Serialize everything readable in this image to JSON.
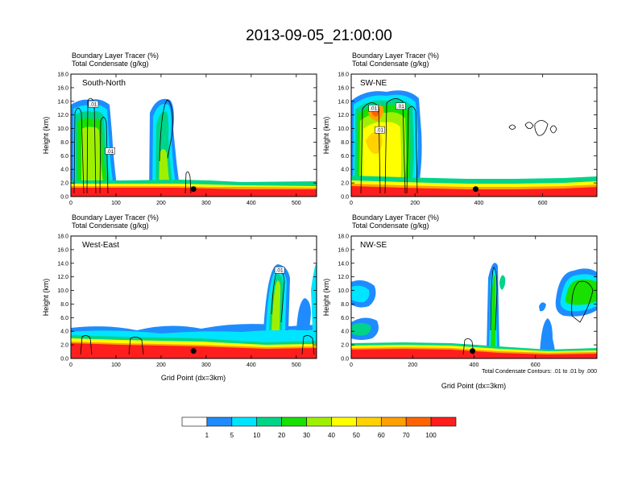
{
  "figure": {
    "title": "2013-09-05_21:00:00",
    "xlabel": "Grid Point (dx=3km)",
    "note": "Total Condensate Contours: .01 to .01 by .000"
  },
  "colorbar": {
    "tick_labels": [
      "1",
      "5",
      "10",
      "20",
      "30",
      "40",
      "50",
      "60",
      "70",
      "100"
    ],
    "colors": [
      "#ffffff",
      "#1e8cff",
      "#00e5ff",
      "#00d488",
      "#18e000",
      "#9ff000",
      "#ffff00",
      "#ffd200",
      "#ffa000",
      "#ff6400",
      "#ff1e1e"
    ]
  },
  "chart_data": [
    {
      "type": "heatmap",
      "panel_label": "South-North",
      "title_lines": [
        "Boundary Layer Tracer   (%)",
        "Total Condensate   (g/kg)"
      ],
      "ylabel": "Height (km)",
      "ylim": [
        0,
        18
      ],
      "yticks": [
        "0.0",
        "2.0",
        "4.0",
        "6.0",
        "8.0",
        "10.0",
        "12.0",
        "14.0",
        "16.0",
        "18.0"
      ],
      "xlim": [
        0,
        545
      ],
      "xticks": [
        0,
        100,
        200,
        300,
        400,
        500
      ],
      "marker": {
        "x": 272,
        "y": 1.1
      },
      "contour_labels": [
        {
          "text": ".01",
          "x": 50,
          "y": 13.6
        },
        {
          "text": ".01",
          "x": 87,
          "y": 6.7
        }
      ],
      "boundary_layer_top": [
        [
          0,
          2.5
        ],
        [
          100,
          2.4
        ],
        [
          200,
          2.1
        ],
        [
          300,
          1.8
        ],
        [
          400,
          1.6
        ],
        [
          545,
          1.6
        ]
      ],
      "plumes": [
        {
          "x": [
            0,
            90
          ],
          "top": 14.8
        },
        {
          "x": [
            180,
            225
          ],
          "top": 14.5
        }
      ]
    },
    {
      "type": "heatmap",
      "panel_label": "SW-NE",
      "title_lines": [
        "Boundary Layer Tracer   (%)",
        "Total Condensate   (g/kg)"
      ],
      "ylabel": "Height (km)",
      "ylim": [
        0,
        18
      ],
      "yticks": [
        "0.0",
        "2.0",
        "4.0",
        "6.0",
        "8.0",
        "10.0",
        "12.0",
        "14.0",
        "16.0",
        "18.0"
      ],
      "xlim": [
        0,
        770
      ],
      "xticks": [
        0,
        200,
        400,
        600
      ],
      "marker": {
        "x": 390,
        "y": 1.1
      },
      "contour_labels": [
        {
          "text": ".01",
          "x": 70,
          "y": 13.0
        },
        {
          "text": ".01",
          "x": 155,
          "y": 13.3
        },
        {
          "text": ".01",
          "x": 90,
          "y": 9.8
        }
      ],
      "boundary_layer_top": [
        [
          0,
          3.0
        ],
        [
          200,
          2.6
        ],
        [
          400,
          2.5
        ],
        [
          600,
          2.5
        ],
        [
          770,
          2.9
        ]
      ],
      "plumes": [
        {
          "x": [
            0,
            210
          ],
          "top": 15.5
        }
      ]
    },
    {
      "type": "heatmap",
      "panel_label": "West-East",
      "title_lines": [
        "Boundary Layer Tracer   (%)",
        "Total Condensate   (g/kg)"
      ],
      "ylabel": "Height (km)",
      "ylim": [
        0,
        18
      ],
      "yticks": [
        "0.0",
        "2.0",
        "4.0",
        "6.0",
        "8.0",
        "10.0",
        "12.0",
        "14.0",
        "16.0",
        "18.0"
      ],
      "xlim": [
        0,
        545
      ],
      "xticks": [
        0,
        100,
        200,
        300,
        400,
        500
      ],
      "marker": {
        "x": 272,
        "y": 1.1
      },
      "contour_labels": [
        {
          "text": ".01",
          "x": 463,
          "y": 13.0
        }
      ],
      "boundary_layer_top": [
        [
          0,
          4.0
        ],
        [
          100,
          3.6
        ],
        [
          200,
          3.3
        ],
        [
          300,
          2.8
        ],
        [
          400,
          2.8
        ],
        [
          545,
          3.0
        ]
      ],
      "plumes": [
        {
          "x": [
            430,
            480
          ],
          "top": 13.5
        }
      ]
    },
    {
      "type": "heatmap",
      "panel_label": "NW-SE",
      "title_lines": [
        "Boundary Layer Tracer   (%)",
        "Total Condensate   (g/kg)"
      ],
      "ylabel": "Height (km)",
      "ylim": [
        0,
        18
      ],
      "yticks": [
        "0.0",
        "2.0",
        "4.0",
        "6.0",
        "8.0",
        "10.0",
        "12.0",
        "14.0",
        "16.0",
        "18.0"
      ],
      "xlim": [
        0,
        800
      ],
      "xticks": [
        0,
        200,
        400,
        600
      ],
      "marker": {
        "x": 395,
        "y": 1.1
      },
      "contour_labels": [],
      "boundary_layer_top": [
        [
          0,
          2.5
        ],
        [
          200,
          2.2
        ],
        [
          400,
          1.5
        ],
        [
          600,
          1.0
        ],
        [
          800,
          1.4
        ]
      ],
      "plumes": [
        {
          "x": [
            420,
            460
          ],
          "top": 14.8
        },
        {
          "x": [
            680,
            790
          ],
          "top": 12.8
        }
      ]
    }
  ]
}
